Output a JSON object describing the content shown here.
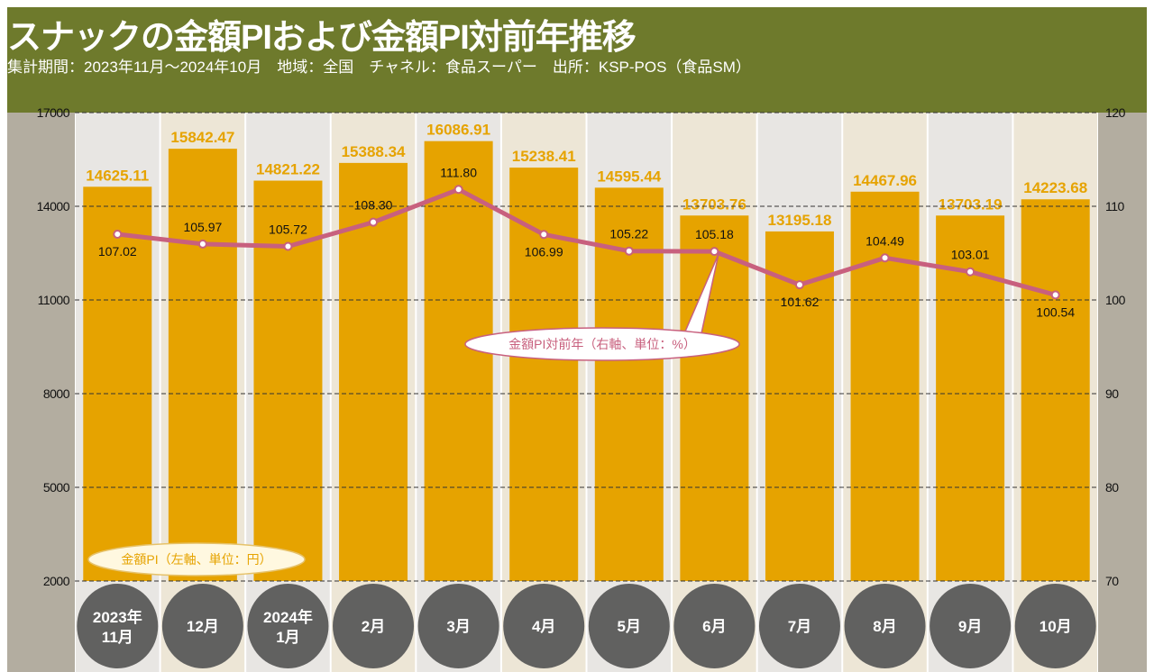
{
  "header": {
    "title": "スナックの金額PIおよび金額PI対前年推移",
    "subtitle": "集計期間：2023年11月～2024年10月　地域：全国　チャネル：食品スーパー　出所：KSP-POS（食品SM）"
  },
  "colors": {
    "header": "#6e7a2c",
    "bar": "#e6a300",
    "line": "#c8607e",
    "axis_strip": "#b3ada0",
    "col_a": "#e8e6e3",
    "col_b": "#ede6d6",
    "circle": "#616160"
  },
  "chart_data": {
    "type": "bar+line",
    "categories": [
      [
        "2023年",
        "11月"
      ],
      [
        "12月"
      ],
      [
        "2024年",
        "1月"
      ],
      [
        "2月"
      ],
      [
        "3月"
      ],
      [
        "4月"
      ],
      [
        "5月"
      ],
      [
        "6月"
      ],
      [
        "7月"
      ],
      [
        "8月"
      ],
      [
        "9月"
      ],
      [
        "10月"
      ]
    ],
    "series": [
      {
        "name": "金額PI（左軸、単位：円）",
        "type": "bar",
        "axis": "left",
        "values": [
          14625.11,
          15842.47,
          14821.22,
          15388.34,
          16086.91,
          15238.41,
          14595.44,
          13703.76,
          13195.18,
          14467.96,
          13703.19,
          14223.68
        ],
        "labels": [
          "14625.11",
          "15842.47",
          "14821.22",
          "15388.34",
          "16086.91",
          "15238.41",
          "14595.44",
          "13703.76",
          "13195.18",
          "14467.96",
          "13703.19",
          "14223.68"
        ]
      },
      {
        "name": "金額PI対前年（右軸、単位：%）",
        "type": "line",
        "axis": "right",
        "values": [
          107.02,
          105.97,
          105.72,
          108.3,
          111.8,
          106.99,
          105.22,
          105.18,
          101.62,
          104.49,
          103.01,
          100.54
        ],
        "labels": [
          "107.02",
          "105.97",
          "105.72",
          "108.30",
          "111.80",
          "106.99",
          "105.22",
          "105.18",
          "101.62",
          "104.49",
          "103.01",
          "100.54"
        ]
      }
    ],
    "y_left": {
      "range": [
        2000,
        17000
      ],
      "ticks": [
        "2000",
        "5000",
        "8000",
        "11000",
        "14000",
        "17000"
      ]
    },
    "y_right": {
      "range": [
        70,
        120
      ],
      "ticks": [
        "70",
        "80",
        "90",
        "100",
        "110",
        "120"
      ]
    },
    "grid": "dashed horizontal"
  }
}
